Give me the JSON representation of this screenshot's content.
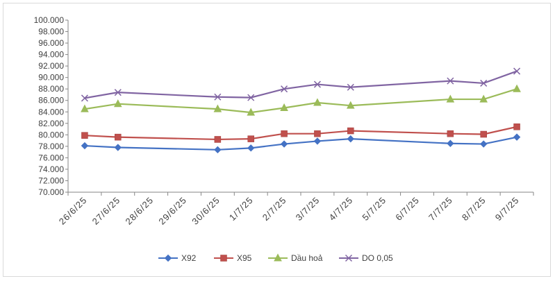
{
  "chart_data": {
    "type": "line",
    "title": "",
    "xlabel": "",
    "ylabel": "",
    "ylim": [
      70000,
      100000
    ],
    "y_step": 2000,
    "y_ticks": [
      "70.000",
      "72.000",
      "74.000",
      "76.000",
      "78.000",
      "80.000",
      "82.000",
      "84.000",
      "86.000",
      "88.000",
      "90.000",
      "92.000",
      "94.000",
      "96.000",
      "98.000",
      "100.000"
    ],
    "categories": [
      "26/6/25",
      "27/6/25",
      "28/6/25",
      "29/6/25",
      "30/6/25",
      "1/7/25",
      "2/7/25",
      "3/7/25",
      "4/7/25",
      "5/7/25",
      "6/7/25",
      "7/7/25",
      "8/7/25",
      "9/7/25"
    ],
    "grid": false,
    "legend_position": "bottom",
    "series": [
      {
        "name": "X92",
        "color": "#4472c4",
        "marker": "diamond",
        "values": [
          78100,
          77800,
          null,
          null,
          77400,
          77700,
          78400,
          78900,
          79300,
          null,
          null,
          78500,
          78400,
          79600
        ]
      },
      {
        "name": "X95",
        "color": "#c0504d",
        "marker": "square",
        "values": [
          79900,
          79600,
          null,
          null,
          79200,
          79300,
          80200,
          80200,
          80700,
          null,
          null,
          80200,
          80100,
          81400
        ]
      },
      {
        "name": "Dầu hoả",
        "color": "#9bbb59",
        "marker": "triangle",
        "values": [
          84500,
          85400,
          null,
          null,
          84500,
          83900,
          84700,
          85600,
          85100,
          null,
          null,
          86200,
          86200,
          88000
        ]
      },
      {
        "name": "DO 0,05",
        "color": "#8064a2",
        "marker": "x",
        "values": [
          86400,
          87400,
          null,
          null,
          86600,
          86500,
          88000,
          88800,
          88300,
          null,
          null,
          89400,
          89000,
          91100
        ]
      }
    ]
  }
}
